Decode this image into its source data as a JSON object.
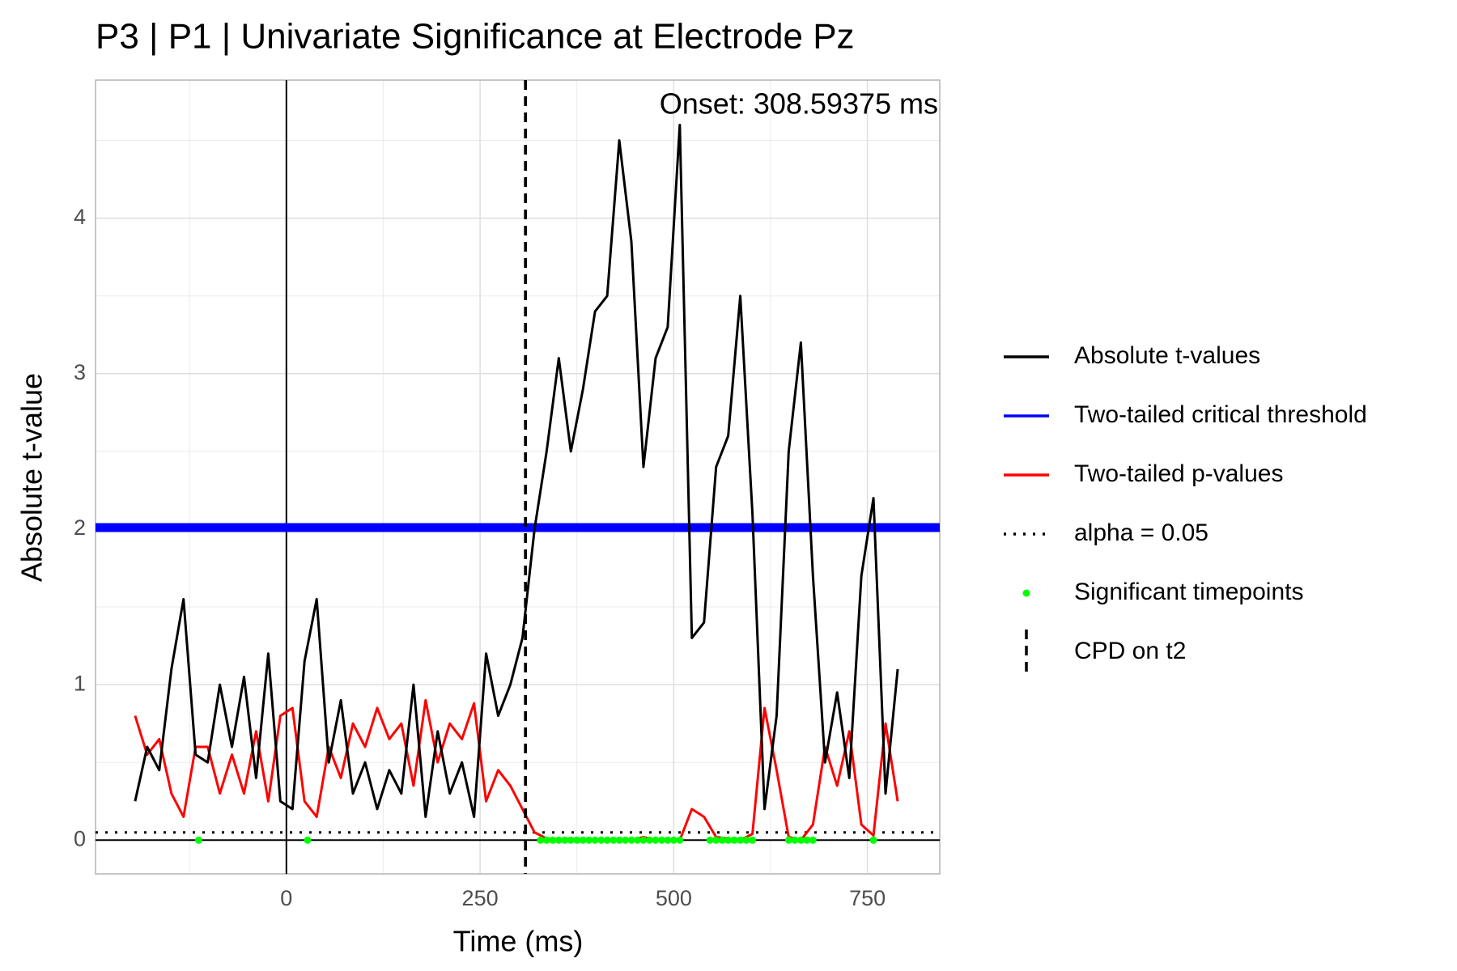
{
  "chart_data": {
    "type": "line",
    "title": "P3 | P1 | Univariate Significance at Electrode Pz",
    "x_label": "Time (ms)",
    "y_label": "Absolute t-value",
    "annotation": "Onset: 308.59375 ms",
    "xlim": [
      -246.4,
      843.4
    ],
    "ylim": [
      -0.217,
      4.888
    ],
    "xticks": [
      0,
      250,
      500,
      750
    ],
    "yticks": [
      0,
      1,
      2,
      3,
      4
    ],
    "grid": true,
    "series": [
      {
        "name": "Absolute t-values",
        "kind": "line",
        "color": "#000000",
        "x": [
          -195.3,
          -179.7,
          -164.1,
          -148.4,
          -132.8,
          -117.2,
          -101.6,
          -85.9,
          -70.3,
          -54.7,
          -39.1,
          -23.4,
          -7.8,
          7.8,
          23.4,
          39.1,
          54.7,
          70.3,
          85.9,
          101.6,
          117.2,
          132.8,
          148.4,
          164.1,
          179.7,
          195.3,
          210.9,
          226.6,
          242.2,
          257.8,
          273.4,
          289.1,
          304.7,
          320.3,
          335.9,
          351.6,
          367.2,
          382.8,
          398.4,
          414.1,
          429.7,
          445.3,
          460.9,
          476.6,
          492.2,
          507.8,
          523.4,
          539.1,
          554.7,
          570.3,
          585.9,
          601.6,
          617.2,
          632.8,
          648.4,
          664.1,
          679.7,
          695.3,
          710.9,
          726.6,
          742.2,
          757.8,
          773.4,
          789.1
        ],
        "values": [
          0.25,
          0.6,
          0.45,
          1.1,
          1.55,
          0.55,
          0.5,
          1.0,
          0.6,
          1.05,
          0.4,
          1.2,
          0.25,
          0.2,
          1.15,
          1.55,
          0.5,
          0.9,
          0.3,
          0.5,
          0.2,
          0.45,
          0.3,
          1.0,
          0.15,
          0.7,
          0.3,
          0.5,
          0.15,
          1.2,
          0.8,
          1.0,
          1.3,
          2.0,
          2.5,
          3.1,
          2.5,
          2.9,
          3.4,
          3.5,
          4.5,
          3.85,
          2.4,
          3.1,
          3.3,
          4.6,
          1.3,
          1.4,
          2.4,
          2.6,
          3.5,
          2.1,
          0.2,
          0.8,
          2.5,
          3.2,
          1.7,
          0.5,
          0.95,
          0.4,
          1.7,
          2.2,
          0.3,
          1.1
        ]
      },
      {
        "name": "Two-tailed critical threshold",
        "kind": "hline",
        "color": "#0000ff",
        "value": 2.01
      },
      {
        "name": "Two-tailed p-values",
        "kind": "line",
        "color": "#ff0000",
        "x": [
          -195.3,
          -179.7,
          -164.1,
          -148.4,
          -132.8,
          -117.2,
          -101.6,
          -85.9,
          -70.3,
          -54.7,
          -39.1,
          -23.4,
          -7.8,
          7.8,
          23.4,
          39.1,
          54.7,
          70.3,
          85.9,
          101.6,
          117.2,
          132.8,
          148.4,
          164.1,
          179.7,
          195.3,
          210.9,
          226.6,
          242.2,
          257.8,
          273.4,
          289.1,
          304.7,
          320.3,
          335.9,
          351.6,
          367.2,
          382.8,
          398.4,
          414.1,
          429.7,
          445.3,
          460.9,
          476.6,
          492.2,
          507.8,
          523.4,
          539.1,
          554.7,
          570.3,
          585.9,
          601.6,
          617.2,
          632.8,
          648.4,
          664.1,
          679.7,
          695.3,
          710.9,
          726.6,
          742.2,
          757.8,
          773.4,
          789.1
        ],
        "values": [
          0.8,
          0.55,
          0.65,
          0.3,
          0.15,
          0.6,
          0.6,
          0.3,
          0.55,
          0.3,
          0.7,
          0.25,
          0.8,
          0.85,
          0.25,
          0.15,
          0.6,
          0.4,
          0.75,
          0.6,
          0.85,
          0.65,
          0.75,
          0.35,
          0.9,
          0.5,
          0.75,
          0.65,
          0.88,
          0.25,
          0.45,
          0.35,
          0.2,
          0.05,
          0.01,
          0.0,
          0.01,
          0.0,
          0.0,
          0.0,
          0.0,
          0.0,
          0.02,
          0.0,
          0.0,
          0.0,
          0.2,
          0.15,
          0.02,
          0.01,
          0.0,
          0.04,
          0.85,
          0.45,
          0.02,
          0.0,
          0.1,
          0.6,
          0.35,
          0.7,
          0.1,
          0.03,
          0.75,
          0.25
        ]
      },
      {
        "name": "alpha = 0.05",
        "kind": "hline",
        "style": "dotted",
        "color": "#000000",
        "value": 0.05
      },
      {
        "name": "Significant timepoints",
        "kind": "points",
        "color": "#00ff00",
        "x": [
          -113.28125,
          27.34375,
          328.125,
          335.9375,
          343.75,
          351.5625,
          359.375,
          367.1875,
          375,
          382.8125,
          390.625,
          398.4375,
          406.25,
          414.0625,
          421.875,
          429.6875,
          437.5,
          445.3125,
          453.125,
          460.9375,
          468.75,
          476.5625,
          484.375,
          492.1875,
          500,
          507.8125,
          546.875,
          554.6875,
          562.5,
          570.3125,
          578.125,
          585.9375,
          593.75,
          601.5625,
          648.4375,
          656.25,
          664.0625,
          671.875,
          679.6875,
          757.8125
        ],
        "values": [
          0,
          0,
          0,
          0,
          0,
          0,
          0,
          0,
          0,
          0,
          0,
          0,
          0,
          0,
          0,
          0,
          0,
          0,
          0,
          0,
          0,
          0,
          0,
          0,
          0,
          0,
          0,
          0,
          0,
          0,
          0,
          0,
          0,
          0,
          0,
          0,
          0,
          0,
          0,
          0
        ]
      },
      {
        "name": "CPD on t2",
        "kind": "vline",
        "style": "dashed",
        "color": "#000000",
        "value": 308.59375
      }
    ]
  }
}
